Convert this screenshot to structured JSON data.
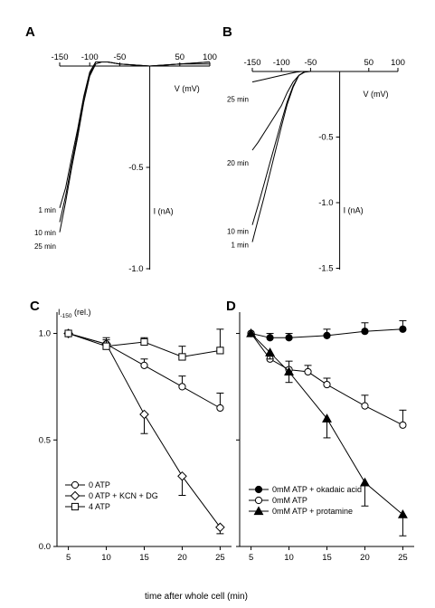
{
  "figure": {
    "panels": [
      "A",
      "B",
      "C",
      "D"
    ]
  },
  "chart_data": [
    {
      "panel": "A",
      "type": "line",
      "xlabel": "V (mV)",
      "ylabel": "I (nA)",
      "xlim": [
        -160,
        110
      ],
      "ylim": [
        -1.0,
        0.05
      ],
      "xticks": [
        -150,
        -100,
        -50,
        50,
        100
      ],
      "xtick_labels": [
        "-150",
        "-100",
        "-50",
        "50",
        "100"
      ],
      "yticks": [
        -0.5,
        -1.0
      ],
      "ytick_labels": [
        "-0.5",
        "-1.0"
      ],
      "series": [
        {
          "name": "1 min",
          "x": [
            -150,
            -140,
            -130,
            -120,
            -110,
            -100,
            -90,
            -80,
            -70,
            -50,
            0,
            50,
            100
          ],
          "y": [
            -0.7,
            -0.6,
            -0.45,
            -0.31,
            -0.15,
            -0.03,
            0.02,
            0.02,
            0.02,
            0.01,
            0.0,
            0.01,
            0.02
          ]
        },
        {
          "name": "10 min",
          "x": [
            -150,
            -140,
            -130,
            -120,
            -110,
            -100,
            -90,
            -80,
            -70,
            -50,
            0,
            50,
            100
          ],
          "y": [
            -0.77,
            -0.64,
            -0.48,
            -0.33,
            -0.16,
            -0.04,
            0.02,
            0.02,
            0.02,
            0.01,
            0.0,
            0.01,
            0.01
          ]
        },
        {
          "name": "25 min",
          "x": [
            -150,
            -140,
            -130,
            -120,
            -110,
            -100,
            -90,
            -80,
            -70,
            -50,
            0,
            50,
            100
          ],
          "y": [
            -0.82,
            -0.67,
            -0.5,
            -0.35,
            -0.18,
            -0.05,
            0.01,
            0.02,
            0.02,
            0.01,
            0.0,
            0.01,
            0.02
          ]
        }
      ]
    },
    {
      "panel": "B",
      "type": "line",
      "xlabel": "V (mV)",
      "ylabel": "I (nA)",
      "xlim": [
        -160,
        110
      ],
      "ylim": [
        -1.5,
        0.05
      ],
      "xticks": [
        -150,
        -100,
        -50,
        50,
        100
      ],
      "xtick_labels": [
        "-150",
        "-100",
        "-50",
        "50",
        "100"
      ],
      "yticks": [
        -0.5,
        -1.0,
        -1.5
      ],
      "ytick_labels": [
        "-0.5",
        "-1.0",
        "-1.5"
      ],
      "series": [
        {
          "name": "25 min",
          "x": [
            -150,
            -130,
            -110,
            -90,
            -75,
            -65,
            -55,
            -40,
            0,
            50,
            100
          ],
          "y": [
            -0.08,
            -0.06,
            -0.04,
            -0.02,
            -0.005,
            0.0,
            0.0,
            0.0,
            0.0,
            0.0,
            0.0
          ]
        },
        {
          "name": "20 min",
          "x": [
            -150,
            -140,
            -120,
            -100,
            -90,
            -80,
            -70,
            -60,
            -50,
            0,
            50,
            100
          ],
          "y": [
            -0.6,
            -0.54,
            -0.4,
            -0.26,
            -0.16,
            -0.08,
            -0.03,
            -0.005,
            0.0,
            0.0,
            0.0,
            0.0
          ]
        },
        {
          "name": "10 min",
          "x": [
            -150,
            -140,
            -130,
            -120,
            -110,
            -100,
            -90,
            -80,
            -70,
            -60,
            -50,
            0,
            50,
            100
          ],
          "y": [
            -1.17,
            -1.02,
            -0.86,
            -0.7,
            -0.54,
            -0.38,
            -0.23,
            -0.11,
            -0.03,
            0.0,
            0.0,
            0.0,
            0.0,
            0.0
          ]
        },
        {
          "name": "1 min",
          "x": [
            -150,
            -140,
            -130,
            -120,
            -110,
            -100,
            -90,
            -80,
            -70,
            -60,
            -50,
            0,
            50,
            100
          ],
          "y": [
            -1.3,
            -1.13,
            -0.96,
            -0.78,
            -0.6,
            -0.42,
            -0.25,
            -0.12,
            -0.03,
            0.0,
            0.0,
            0.0,
            0.0,
            0.0
          ]
        }
      ]
    },
    {
      "panel": "C",
      "type": "line",
      "ylabel_main": "I",
      "ylabel_sub": "-150",
      "ylabel_suffix": " (rel.)",
      "xlim": [
        3.5,
        26.5
      ],
      "ylim": [
        0,
        1.1
      ],
      "xticks": [
        5,
        10,
        15,
        20,
        25
      ],
      "xtick_labels": [
        "5",
        "10",
        "15",
        "20",
        "25"
      ],
      "yticks": [
        0.0,
        0.5,
        1.0
      ],
      "ytick_labels": [
        "0.0",
        "0.5",
        "1.0"
      ],
      "series": [
        {
          "name": "0 ATP",
          "marker": "circle-open",
          "x": [
            5,
            10,
            15,
            20,
            25
          ],
          "y": [
            1.0,
            0.95,
            0.85,
            0.75,
            0.65
          ],
          "err": [
            0,
            0.03,
            0.03,
            0.05,
            0.07
          ]
        },
        {
          "name": "0 ATP + KCN + DG",
          "marker": "diamond-open",
          "x": [
            5,
            10,
            15,
            20,
            25
          ],
          "y": [
            1.0,
            0.95,
            0.62,
            0.33,
            0.09
          ],
          "err": [
            0,
            0.02,
            0.09,
            0.09,
            0.03
          ]
        },
        {
          "name": "4 ATP",
          "marker": "square-open",
          "x": [
            5,
            10,
            15,
            20,
            25
          ],
          "y": [
            1.0,
            0.94,
            0.96,
            0.89,
            0.92
          ],
          "err": [
            0,
            0.03,
            0.02,
            0.05,
            0.1
          ]
        }
      ]
    },
    {
      "panel": "D",
      "type": "line",
      "xlabel": "time after whole cell (min)",
      "xlim": [
        3.5,
        26.5
      ],
      "ylim": [
        0,
        1.1
      ],
      "xticks": [
        5,
        10,
        15,
        20,
        25
      ],
      "xtick_labels": [
        "5",
        "10",
        "15",
        "20",
        "25"
      ],
      "series": [
        {
          "name": "0mM ATP + okadaic acid",
          "marker": "circle-filled",
          "x": [
            5,
            7.5,
            10,
            15,
            20,
            25
          ],
          "y": [
            1.0,
            0.98,
            0.98,
            0.99,
            1.01,
            1.02
          ],
          "err": [
            0,
            0.02,
            0.02,
            0.03,
            0.04,
            0.04
          ]
        },
        {
          "name": "0mM ATP",
          "marker": "circle-open",
          "x": [
            5,
            7.5,
            10,
            12.5,
            15,
            20,
            25
          ],
          "y": [
            1.0,
            0.88,
            0.83,
            0.82,
            0.76,
            0.66,
            0.57
          ],
          "err": [
            0,
            0.02,
            0.04,
            0.03,
            0.03,
            0.05,
            0.07
          ]
        },
        {
          "name": "0mM ATP + protamine",
          "marker": "triangle-filled",
          "x": [
            5,
            7.5,
            10,
            15,
            20,
            25
          ],
          "y": [
            1.0,
            0.91,
            0.82,
            0.6,
            0.3,
            0.15
          ],
          "err": [
            0,
            0.03,
            0.05,
            0.09,
            0.11,
            0.1
          ]
        }
      ]
    }
  ]
}
